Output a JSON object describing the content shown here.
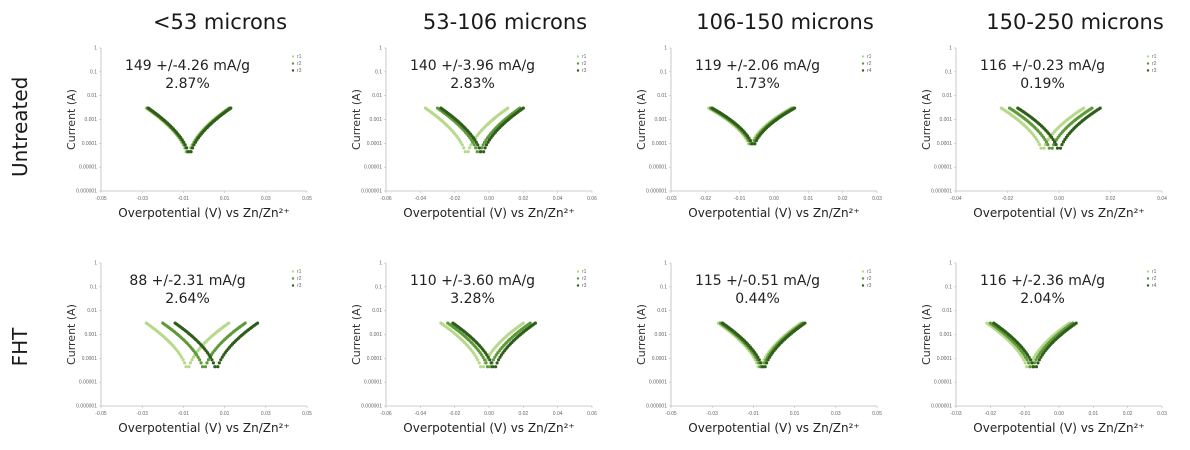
{
  "column_headers": [
    "<53 microns",
    "53-106 microns",
    "106-150 microns",
    "150-250 microns"
  ],
  "row_headers": [
    "Untreated",
    "FHT"
  ],
  "colors": {
    "series": [
      "#b7d98c",
      "#5f9a3a",
      "#2f5d1a"
    ]
  },
  "chart_data": [
    {
      "type": "scatter",
      "row": "Untreated",
      "column": "<53 microns",
      "ylabel": "Current (A)",
      "xlabel": "Overpotential (V) vs Zn/Zn²⁺",
      "log_y": true,
      "y_ticks": [
        "1",
        "0.1",
        "0.01",
        "0.001",
        "0.0001",
        "0.00001",
        "0.000001"
      ],
      "x_ticks": [
        "-0.05",
        "-0.03",
        "-0.01",
        "0.01",
        "0.03",
        "0.05"
      ],
      "xlim": [
        -0.05,
        0.05
      ],
      "annotation": [
        "149 +/-4.26 mA/g",
        "2.87%"
      ],
      "legend": [
        "r1",
        "r2",
        "r3"
      ],
      "minima": [
        -0.008,
        -0.0075,
        -0.007
      ],
      "minimum_current": 2e-05,
      "series": [
        {
          "name": "r1"
        },
        {
          "name": "r2"
        },
        {
          "name": "r3"
        }
      ]
    },
    {
      "type": "scatter",
      "row": "Untreated",
      "column": "53-106 microns",
      "ylabel": "Current (A)",
      "xlabel": "Overpotential (V) vs Zn/Zn²⁺",
      "log_y": true,
      "y_ticks": [
        "1",
        "0.1",
        "0.01",
        "0.001",
        "0.0001",
        "0.00001",
        "0.000001"
      ],
      "x_ticks": [
        "-0.06",
        "-0.04",
        "-0.02",
        "0.00",
        "0.02",
        "0.04",
        "0.06"
      ],
      "xlim": [
        -0.06,
        0.06
      ],
      "annotation": [
        "140 +/-3.96 mA/g",
        "2.83%"
      ],
      "legend": [
        "r1",
        "r2",
        "r3"
      ],
      "minima": [
        -0.013,
        -0.006,
        -0.004
      ],
      "minimum_current": 2e-05,
      "series": [
        {
          "name": "r1"
        },
        {
          "name": "r2"
        },
        {
          "name": "r3"
        }
      ]
    },
    {
      "type": "scatter",
      "row": "Untreated",
      "column": "106-150 microns",
      "ylabel": "Current (A)",
      "xlabel": "Overpotential (V) vs Zn/Zn²⁺",
      "log_y": true,
      "y_ticks": [
        "1",
        "0.1",
        "0.01",
        "0.001",
        "0.0001",
        "0.00001",
        "0.000001"
      ],
      "x_ticks": [
        "-0.03",
        "-0.02",
        "-0.01",
        "0.00",
        "0.01",
        "0.02",
        "0.03"
      ],
      "xlim": [
        -0.03,
        0.03
      ],
      "annotation": [
        "119 +/-2.06 mA/g",
        "1.73%"
      ],
      "legend": [
        "r1",
        "r2",
        "r4"
      ],
      "minima": [
        -0.007,
        -0.0065,
        -0.006
      ],
      "minimum_current": 5e-05,
      "series": [
        {
          "name": "r1"
        },
        {
          "name": "r2"
        },
        {
          "name": "r4"
        }
      ]
    },
    {
      "type": "scatter",
      "row": "Untreated",
      "column": "150-250 microns",
      "ylabel": "Current (A)",
      "xlabel": "Overpotential (V) vs Zn/Zn²⁺",
      "log_y": true,
      "y_ticks": [
        "1",
        "0.1",
        "0.01",
        "0.001",
        "0.0001",
        "0.00001",
        "0.000001"
      ],
      "x_ticks": [
        "-0.04",
        "-0.02",
        "0.00",
        "0.02",
        "0.04"
      ],
      "xlim": [
        -0.05,
        0.05
      ],
      "annotation": [
        "116 +/-0.23 mA/g",
        "0.19%"
      ],
      "legend": [
        "r1",
        "r2",
        "r3"
      ],
      "minima": [
        -0.008,
        -0.004,
        0.0
      ],
      "minimum_current": 3e-05,
      "series": [
        {
          "name": "r1"
        },
        {
          "name": "r2"
        },
        {
          "name": "r3"
        }
      ]
    },
    {
      "type": "scatter",
      "row": "FHT",
      "column": "<53 microns",
      "ylabel": "Current (A)",
      "xlabel": "Overpotential (V) vs Zn/Zn²⁺",
      "log_y": true,
      "y_ticks": [
        "1",
        "0.1",
        "0.01",
        "0.001",
        "0.0001",
        "0.00001",
        "0.000001"
      ],
      "x_ticks": [
        "-0.05",
        "-0.03",
        "-0.01",
        "0.01",
        "0.03",
        "0.05"
      ],
      "xlim": [
        -0.05,
        0.05
      ],
      "annotation": [
        "88 +/-2.31 mA/g",
        "2.64%"
      ],
      "legend": [
        "r1",
        "r2",
        "r3"
      ],
      "minima": [
        -0.008,
        0.0,
        0.006
      ],
      "minimum_current": 2e-05,
      "series": [
        {
          "name": "r1"
        },
        {
          "name": "r2"
        },
        {
          "name": "r3"
        }
      ]
    },
    {
      "type": "scatter",
      "row": "FHT",
      "column": "53-106 microns",
      "ylabel": "Current (A)",
      "xlabel": "Overpotential (V) vs Zn/Zn²⁺",
      "log_y": true,
      "y_ticks": [
        "1",
        "0.1",
        "0.01",
        "0.001",
        "0.0001",
        "0.00001",
        "0.000001"
      ],
      "x_ticks": [
        "-0.06",
        "-0.04",
        "-0.02",
        "0.00",
        "0.02",
        "0.04",
        "0.06"
      ],
      "xlim": [
        -0.06,
        0.06
      ],
      "annotation": [
        "110 +/-3.60 mA/g",
        "3.28%"
      ],
      "legend": [
        "r1",
        "r2",
        "r3"
      ],
      "minima": [
        -0.004,
        0.0,
        0.003
      ],
      "minimum_current": 2e-05,
      "series": [
        {
          "name": "r1"
        },
        {
          "name": "r2"
        },
        {
          "name": "r3"
        }
      ]
    },
    {
      "type": "scatter",
      "row": "FHT",
      "column": "106-150 microns",
      "ylabel": "Current (A)",
      "xlabel": "Overpotential (V) vs Zn/Zn²⁺",
      "log_y": true,
      "y_ticks": [
        "1",
        "0.1",
        "0.01",
        "0.001",
        "0.0001",
        "0.00001",
        "0.000001"
      ],
      "x_ticks": [
        "-0.05",
        "-0.03",
        "-0.01",
        "0.01",
        "0.03",
        "0.05"
      ],
      "xlim": [
        -0.05,
        0.05
      ],
      "annotation": [
        "115 +/-0.51 mA/g",
        "0.44%"
      ],
      "legend": [
        "r1",
        "r2",
        "r3"
      ],
      "minima": [
        -0.007,
        -0.006,
        -0.005
      ],
      "minimum_current": 2e-05,
      "series": [
        {
          "name": "r1"
        },
        {
          "name": "r2"
        },
        {
          "name": "r3"
        }
      ]
    },
    {
      "type": "scatter",
      "row": "FHT",
      "column": "150-250 microns",
      "ylabel": "Current (A)",
      "xlabel": "Overpotential (V) vs Zn/Zn²⁺",
      "log_y": true,
      "y_ticks": [
        "1",
        "0.1",
        "0.01",
        "0.001",
        "0.0001",
        "0.00001",
        "0.000001"
      ],
      "x_ticks": [
        "-0.03",
        "-0.02",
        "-0.01",
        "0.00",
        "0.01",
        "0.02",
        "0.03"
      ],
      "xlim": [
        -0.03,
        0.03
      ],
      "annotation": [
        "116 +/-2.36 mA/g",
        "2.04%"
      ],
      "legend": [
        "r1",
        "r2",
        "r4"
      ],
      "minima": [
        -0.009,
        -0.008,
        -0.007
      ],
      "minimum_current": 2e-05,
      "series": [
        {
          "name": "r1"
        },
        {
          "name": "r2"
        },
        {
          "name": "r4"
        }
      ]
    }
  ]
}
